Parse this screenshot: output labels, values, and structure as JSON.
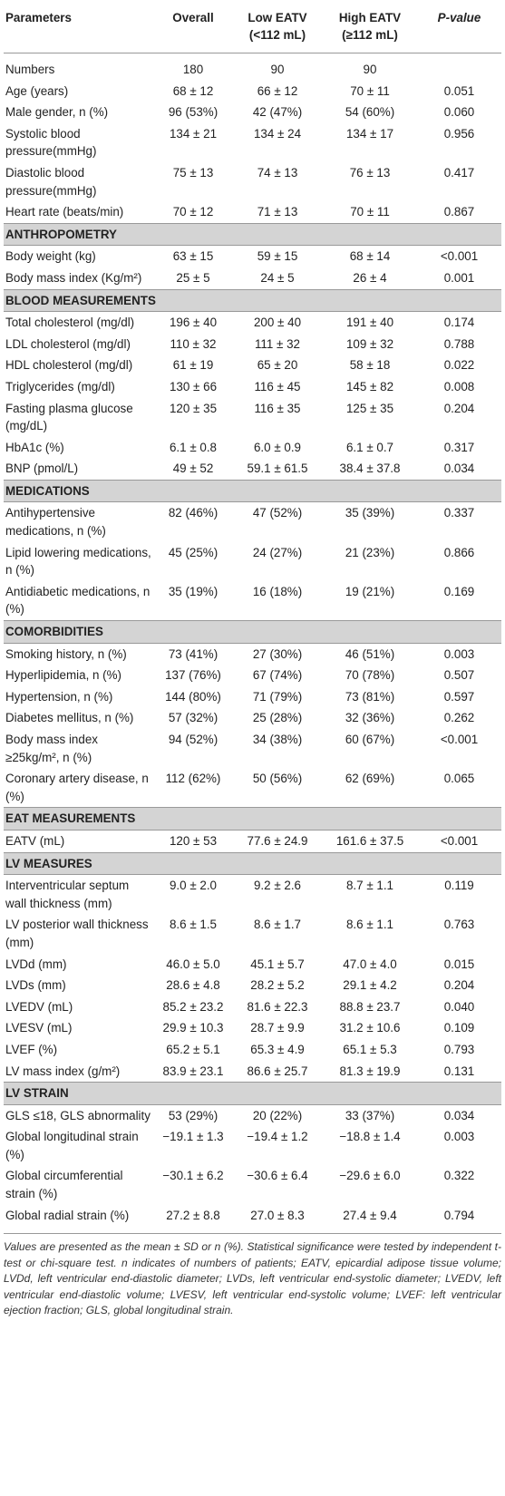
{
  "table": {
    "header": [
      [
        "Parameters"
      ],
      [
        "Overall"
      ],
      [
        "Low EATV",
        "(<112 mL)"
      ],
      [
        "High EATV",
        "(≥112 mL)"
      ],
      [
        "P-value"
      ]
    ],
    "rows": [
      {
        "cells": [
          "Numbers",
          "180",
          "90",
          "90",
          ""
        ]
      },
      {
        "cells": [
          "Age (years)",
          "68 ± 12",
          "66 ± 12",
          "70 ± 11",
          "0.051"
        ]
      },
      {
        "cells": [
          "Male gender, n (%)",
          "96 (53%)",
          "42 (47%)",
          "54 (60%)",
          "0.060"
        ]
      },
      {
        "cells": [
          "Systolic blood pressure(mmHg)",
          "134 ± 21",
          "134 ± 24",
          "134 ± 17",
          "0.956"
        ]
      },
      {
        "cells": [
          "Diastolic blood pressure(mmHg)",
          "75 ± 13",
          "74 ± 13",
          "76 ± 13",
          "0.417"
        ]
      },
      {
        "cells": [
          "Heart rate (beats/min)",
          "70 ± 12",
          "71 ± 13",
          "70 ± 11",
          "0.867"
        ]
      },
      {
        "section": "ANTHROPOMETRY"
      },
      {
        "cells": [
          "Body weight (kg)",
          "63 ± 15",
          "59 ± 15",
          "68 ± 14",
          "<0.001"
        ]
      },
      {
        "cells": [
          "Body mass index (Kg/m²)",
          "25 ± 5",
          "24 ± 5",
          "26 ± 4",
          "0.001"
        ]
      },
      {
        "section": "BLOOD MEASUREMENTS"
      },
      {
        "cells": [
          "Total cholesterol (mg/dl)",
          "196 ± 40",
          "200 ± 40",
          "191 ± 40",
          "0.174"
        ]
      },
      {
        "cells": [
          "LDL cholesterol (mg/dl)",
          "110 ± 32",
          "111 ± 32",
          "109 ± 32",
          "0.788"
        ]
      },
      {
        "cells": [
          "HDL cholesterol (mg/dl)",
          "61 ± 19",
          "65 ± 20",
          "58 ± 18",
          "0.022"
        ]
      },
      {
        "cells": [
          "Triglycerides (mg/dl)",
          "130 ± 66",
          "116 ± 45",
          "145 ± 82",
          "0.008"
        ]
      },
      {
        "cells": [
          "Fasting plasma glucose (mg/dL)",
          "120 ± 35",
          "116 ± 35",
          "125 ± 35",
          "0.204"
        ]
      },
      {
        "cells": [
          "HbA1c (%)",
          "6.1 ± 0.8",
          "6.0 ± 0.9",
          "6.1 ± 0.7",
          "0.317"
        ]
      },
      {
        "cells": [
          "BNP (pmol/L)",
          "49 ± 52",
          "59.1 ± 61.5",
          "38.4 ± 37.8",
          "0.034"
        ]
      },
      {
        "section": "MEDICATIONS"
      },
      {
        "cells": [
          "Antihypertensive medications, n (%)",
          "82 (46%)",
          "47 (52%)",
          "35 (39%)",
          "0.337"
        ]
      },
      {
        "cells": [
          "Lipid lowering medications, n (%)",
          "45 (25%)",
          "24 (27%)",
          "21 (23%)",
          "0.866"
        ]
      },
      {
        "cells": [
          "Antidiabetic medications, n (%)",
          "35 (19%)",
          "16 (18%)",
          "19 (21%)",
          "0.169"
        ]
      },
      {
        "section": "COMORBIDITIES"
      },
      {
        "cells": [
          "Smoking history, n (%)",
          "73 (41%)",
          "27 (30%)",
          "46 (51%)",
          "0.003"
        ]
      },
      {
        "cells": [
          "Hyperlipidemia, n (%)",
          "137 (76%)",
          "67 (74%)",
          "70 (78%)",
          "0.507"
        ]
      },
      {
        "cells": [
          "Hypertension, n (%)",
          "144 (80%)",
          "71 (79%)",
          "73 (81%)",
          "0.597"
        ]
      },
      {
        "cells": [
          "Diabetes mellitus, n (%)",
          "57 (32%)",
          "25 (28%)",
          "32 (36%)",
          "0.262"
        ]
      },
      {
        "cells": [
          "Body mass index ≥25kg/m², n (%)",
          "94 (52%)",
          "34 (38%)",
          "60 (67%)",
          "<0.001"
        ]
      },
      {
        "cells": [
          "Coronary artery disease, n (%)",
          "112 (62%)",
          "50 (56%)",
          "62 (69%)",
          "0.065"
        ]
      },
      {
        "section": "EAT MEASUREMENTS"
      },
      {
        "cells": [
          "EATV (mL)",
          "120 ± 53",
          "77.6 ± 24.9",
          "161.6 ± 37.5",
          "<0.001"
        ]
      },
      {
        "section": "LV MEASURES"
      },
      {
        "cells": [
          "Interventricular septum wall thickness (mm)",
          "9.0 ± 2.0",
          "9.2 ± 2.6",
          "8.7 ± 1.1",
          "0.119"
        ]
      },
      {
        "cells": [
          "LV posterior wall thickness (mm)",
          "8.6 ± 1.5",
          "8.6 ± 1.7",
          "8.6 ± 1.1",
          "0.763"
        ]
      },
      {
        "cells": [
          "LVDd (mm)",
          "46.0 ± 5.0",
          "45.1 ± 5.7",
          "47.0 ± 4.0",
          "0.015"
        ]
      },
      {
        "cells": [
          "LVDs (mm)",
          "28.6 ± 4.8",
          "28.2 ± 5.2",
          "29.1 ± 4.2",
          "0.204"
        ]
      },
      {
        "cells": [
          "LVEDV (mL)",
          "85.2 ± 23.2",
          "81.6 ± 22.3",
          "88.8 ± 23.7",
          "0.040"
        ]
      },
      {
        "cells": [
          "LVESV (mL)",
          "29.9 ± 10.3",
          "28.7 ± 9.9",
          "31.2 ± 10.6",
          "0.109"
        ]
      },
      {
        "cells": [
          "LVEF (%)",
          "65.2 ± 5.1",
          "65.3 ± 4.9",
          "65.1 ± 5.3",
          "0.793"
        ]
      },
      {
        "cells": [
          "LV mass index (g/m²)",
          "83.9 ± 23.1",
          "86.6 ± 25.7",
          "81.3 ± 19.9",
          "0.131"
        ]
      },
      {
        "section": "LV STRAIN"
      },
      {
        "cells": [
          "GLS ≤18, GLS abnormality",
          "53 (29%)",
          "20 (22%)",
          "33 (37%)",
          "0.034"
        ]
      },
      {
        "cells": [
          "Global longitudinal strain (%)",
          "−19.1 ± 1.3",
          "−19.4 ± 1.2",
          "−18.8 ± 1.4",
          "0.003"
        ]
      },
      {
        "cells": [
          "Global circumferential strain (%)",
          "−30.1 ± 6.2",
          "−30.6 ± 6.4",
          "−29.6 ± 6.0",
          "0.322"
        ]
      },
      {
        "cells": [
          "Global radial strain (%)",
          "27.2 ± 8.8",
          "27.0 ± 8.3",
          "27.4 ± 9.4",
          "0.794"
        ]
      }
    ],
    "footnote": "Values are presented as the mean ± SD or n (%). Statistical significance were tested by independent t-test or chi-square test. n indicates of numbers of patients; EATV, epicardial adipose tissue volume; LVDd, left ventricular end-diastolic diameter; LVDs, left ventricular end-systolic diameter; LVEDV, left ventricular end-diastolic volume; LVESV, left ventricular end-systolic volume; LVEF: left ventricular ejection fraction; GLS, global longitudinal strain."
  }
}
